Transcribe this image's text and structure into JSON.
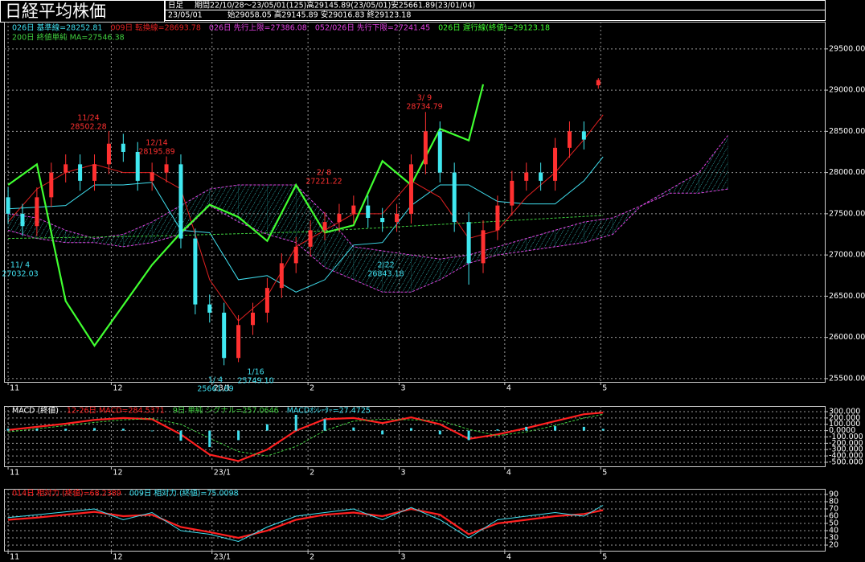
{
  "header": {
    "title": "日経平均株価",
    "timeframe": "日足",
    "period": "期間22/10/28～23/05/01(125)高29145.89(23/05/01)安25661.89(23/01/04)",
    "date": "23/05/01",
    "ohlc": "始29058.05 高29145.89 安29016.83 終29123.18"
  },
  "chart_data": [
    {
      "type": "candlestick",
      "up_color": "#ff3030",
      "down_color": "#40e8f0",
      "grid": true,
      "xlim": [
        -0.85,
        170.2
      ],
      "ylim": [
        25460,
        29830
      ],
      "xticks": [
        {
          "value": 0,
          "label": "11"
        },
        {
          "value": 21.5,
          "label": "12"
        },
        {
          "value": 42.5,
          "label": "23/1"
        },
        {
          "value": 62.5,
          "label": "2"
        },
        {
          "value": 81.5,
          "label": "3"
        },
        {
          "value": 103.5,
          "label": "4"
        },
        {
          "value": 123.5,
          "label": "5"
        }
      ],
      "yticks": [
        {
          "value": 29500,
          "label": "29500.00"
        },
        {
          "value": 29000,
          "label": "29000.00"
        },
        {
          "value": 28500,
          "label": "28500.00"
        },
        {
          "value": 28000,
          "label": "28000.00"
        },
        {
          "value": 27500,
          "label": "27500.00"
        },
        {
          "value": 27000,
          "label": "27000.00"
        },
        {
          "value": 26500,
          "label": "26500.00"
        },
        {
          "value": 26000,
          "label": "26000.00"
        },
        {
          "value": 25500,
          "label": "25500.00"
        }
      ],
      "x": [
        0,
        3,
        6,
        9,
        12,
        15,
        18,
        21,
        24,
        27,
        30,
        33,
        36,
        39,
        42,
        45,
        48,
        51,
        54,
        57,
        60,
        63,
        66,
        69,
        72,
        75,
        78,
        81,
        84,
        87,
        90,
        93,
        96,
        99,
        102,
        105,
        108,
        111,
        114,
        117,
        120,
        123
      ],
      "open": [
        27700,
        27500,
        27350,
        27700,
        28000,
        28100,
        27900,
        28100,
        28350,
        28250,
        27900,
        28000,
        28100,
        27200,
        26400,
        26300,
        25750,
        26150,
        26300,
        26600,
        26900,
        27100,
        27300,
        27400,
        27500,
        27600,
        27450,
        27400,
        27500,
        28100,
        28500,
        28000,
        27400,
        26900,
        27300,
        27600,
        27900,
        28000,
        27900,
        28300,
        28500,
        29058.05
      ],
      "high": [
        27820,
        27620,
        27820,
        28120,
        28220,
        28220,
        28220,
        28502.28,
        28470,
        28370,
        28120,
        28195.89,
        28220,
        27320,
        26520,
        26420,
        26270,
        26420,
        26720,
        27020,
        27220,
        27420,
        27520,
        27620,
        27720,
        27720,
        27570,
        27620,
        28220,
        28734.79,
        28620,
        28120,
        27520,
        27420,
        27720,
        28020,
        28120,
        28120,
        28420,
        28620,
        28620,
        29145.89
      ],
      "low": [
        27380,
        27230,
        27230,
        27580,
        27880,
        27780,
        27780,
        27980,
        28130,
        27780,
        27780,
        27880,
        27080,
        26280,
        26180,
        25661.89,
        25700,
        26030,
        26180,
        26480,
        26780,
        26980,
        27180,
        27280,
        27380,
        27330,
        27280,
        27280,
        27380,
        27980,
        27880,
        27280,
        26640,
        26780,
        27180,
        27480,
        27780,
        27780,
        27780,
        28180,
        28280,
        29016.83
      ],
      "close": [
        27500,
        27350,
        27700,
        28000,
        28100,
        27900,
        28100,
        28350,
        28250,
        27900,
        28000,
        28100,
        27200,
        26400,
        26300,
        25750,
        26150,
        26300,
        26600,
        26900,
        27100,
        27300,
        27400,
        27500,
        27600,
        27450,
        27400,
        27500,
        28100,
        28500,
        28000,
        27400,
        26900,
        27300,
        27600,
        27900,
        28000,
        27900,
        28300,
        28500,
        28400,
        29123.18
      ],
      "cloud": {
        "color": "#38c8c8",
        "upper": {
          "name": "026日 先行上限=27386.08",
          "color": "#e040e0",
          "x": [
            0,
            6,
            12,
            18,
            24,
            30,
            36,
            42,
            48,
            54,
            60,
            66,
            72,
            78,
            84,
            90,
            96,
            102,
            108,
            114,
            120,
            126,
            132,
            138,
            144,
            150
          ],
          "values": [
            27500,
            27450,
            27300,
            27200,
            27250,
            27400,
            27600,
            27800,
            27850,
            27850,
            27850,
            27500,
            27100,
            27050,
            27000,
            26950,
            27000,
            27100,
            27200,
            27300,
            27400,
            27450,
            27600,
            27800,
            28000,
            28450
          ]
        },
        "lower": {
          "name": "052/026日 先行下限=27241.45",
          "color": "#e040e0",
          "x": [
            0,
            6,
            12,
            18,
            24,
            30,
            36,
            42,
            48,
            54,
            60,
            66,
            72,
            78,
            84,
            90,
            96,
            102,
            108,
            114,
            120,
            126,
            132,
            138,
            144,
            150
          ],
          "values": [
            27300,
            27200,
            27150,
            27150,
            27100,
            27150,
            27250,
            27600,
            27400,
            27250,
            27150,
            26850,
            26700,
            26550,
            26550,
            26700,
            26900,
            27000,
            27050,
            27100,
            27150,
            27250,
            27600,
            27750,
            27750,
            27800
          ]
        }
      },
      "series": [
        {
          "name": "026日 基準線=28252.81",
          "color": "#40e0f0",
          "style": "line",
          "x": [
            0,
            6,
            12,
            18,
            24,
            30,
            36,
            42,
            48,
            54,
            60,
            66,
            72,
            78,
            84,
            90,
            96,
            102,
            108,
            114,
            120,
            124
          ],
          "values": [
            27560,
            27580,
            27600,
            27850,
            27850,
            27880,
            27300,
            27270,
            26700,
            26750,
            26550,
            26700,
            27120,
            27150,
            27600,
            27850,
            27850,
            27650,
            27620,
            27620,
            27900,
            28190
          ]
        },
        {
          "name": "009日 転換線=28693.78",
          "color": "#e02020",
          "style": "line",
          "x": [
            0,
            6,
            12,
            18,
            24,
            30,
            36,
            42,
            48,
            54,
            60,
            66,
            72,
            78,
            84,
            90,
            96,
            102,
            108,
            114,
            120,
            124
          ],
          "values": [
            27400,
            27800,
            28000,
            28100,
            28000,
            28000,
            27800,
            26700,
            26200,
            26500,
            27100,
            27300,
            27500,
            27500,
            27900,
            27700,
            27200,
            27300,
            27700,
            28000,
            28400,
            28700
          ]
        },
        {
          "name": "026日 遅行線(終値)=29123.18",
          "color": "#40ff30",
          "style": "thick",
          "x": [
            0,
            6,
            12,
            18,
            24,
            30,
            36,
            42,
            48,
            54,
            60,
            66,
            72,
            78,
            84,
            90,
            96,
            99
          ],
          "values": [
            27850,
            28100,
            26440,
            25900,
            26390,
            26880,
            27270,
            27610,
            27460,
            27170,
            27850,
            27270,
            27360,
            28140,
            27850,
            28530,
            28390,
            29070
          ]
        },
        {
          "name": "200日 終値単純 MA=27546.38",
          "color": "#40d040",
          "style": "dash",
          "x": [
            0,
            31,
            62,
            93,
            124
          ],
          "values": [
            27200,
            27230,
            27280,
            27380,
            27480
          ]
        }
      ],
      "annotations": [
        {
          "date": "11/ 4",
          "price": "27032.03"
        },
        {
          "date": "11/24",
          "price": "28502.28"
        },
        {
          "date": "12/14",
          "price": "28195.89"
        },
        {
          "date": "1/ 4",
          "price": "25661.89"
        },
        {
          "date": "1/16",
          "price": "25749.10"
        },
        {
          "date": "2/ 8",
          "price": "27221.22"
        },
        {
          "date": "2/22",
          "price": "26843.18"
        },
        {
          "date": "3/ 9",
          "price": "28734.79"
        }
      ]
    },
    {
      "type": "line",
      "title": "MACD (終値)",
      "grid": true,
      "xlim": [
        -0.85,
        170.2
      ],
      "ylim": [
        -564,
        389
      ],
      "xticks": [
        {
          "value": 0,
          "label": "11"
        },
        {
          "value": 21.5,
          "label": "12"
        },
        {
          "value": 42.5,
          "label": "23/1"
        },
        {
          "value": 62.5,
          "label": "2"
        },
        {
          "value": 81.5,
          "label": "3"
        },
        {
          "value": 103.5,
          "label": "4"
        },
        {
          "value": 123.5,
          "label": "5"
        }
      ],
      "yticks": [
        {
          "value": 300,
          "label": "300.000"
        },
        {
          "value": 200,
          "label": "200.000"
        },
        {
          "value": 100,
          "label": "100.000"
        },
        {
          "value": 0,
          "label": "0.0000"
        },
        {
          "value": -100,
          "label": "-100.000"
        },
        {
          "value": -200,
          "label": "-200.000"
        },
        {
          "value": -300,
          "label": "-300.000"
        },
        {
          "value": -400,
          "label": "-400.000"
        },
        {
          "value": -500,
          "label": "-500.000"
        }
      ],
      "series": [
        {
          "name": "12-26日 MACD=284.5371",
          "color": "#ff2020",
          "style": "thick",
          "x": [
            0,
            6,
            12,
            18,
            24,
            30,
            36,
            42,
            48,
            54,
            60,
            66,
            72,
            78,
            84,
            90,
            96,
            102,
            108,
            114,
            120,
            124
          ],
          "values": [
            10,
            60,
            110,
            170,
            200,
            180,
            -60,
            -380,
            -480,
            -300,
            0,
            180,
            200,
            120,
            210,
            100,
            -130,
            -60,
            40,
            150,
            260,
            284.5371
          ]
        },
        {
          "name": "9日 単純 シグナル=257.0646",
          "color": "#40d040",
          "style": "dash",
          "x": [
            0,
            6,
            12,
            18,
            24,
            30,
            36,
            42,
            48,
            54,
            60,
            66,
            72,
            78,
            84,
            90,
            96,
            102,
            108,
            114,
            120,
            124
          ],
          "values": [
            -20,
            30,
            80,
            130,
            170,
            190,
            100,
            -120,
            -330,
            -400,
            -250,
            0,
            150,
            180,
            170,
            160,
            20,
            -80,
            -20,
            80,
            200,
            257.0646
          ]
        },
        {
          "name": "MACDｵｼﾚｰﾀｰ=27.4725",
          "color": "#40e0f0",
          "style": "bar",
          "x": [
            0,
            6,
            12,
            18,
            24,
            30,
            36,
            42,
            48,
            54,
            60,
            66,
            72,
            78,
            84,
            90,
            96,
            102,
            108,
            114,
            120,
            124
          ],
          "values": [
            30,
            30,
            30,
            40,
            30,
            -10,
            -160,
            -260,
            -150,
            100,
            250,
            180,
            50,
            -60,
            40,
            -60,
            -150,
            20,
            60,
            70,
            60,
            27.4725
          ]
        }
      ]
    },
    {
      "type": "line",
      "grid": true,
      "xlim": [
        -0.85,
        170.2
      ],
      "ylim": [
        12.2,
        97.8
      ],
      "xticks": [
        {
          "value": 0,
          "label": "11"
        },
        {
          "value": 21.5,
          "label": "12"
        },
        {
          "value": 42.5,
          "label": "23/1"
        },
        {
          "value": 62.5,
          "label": "2"
        },
        {
          "value": 81.5,
          "label": "3"
        },
        {
          "value": 103.5,
          "label": "4"
        },
        {
          "value": 123.5,
          "label": "5"
        }
      ],
      "yticks": [
        90,
        80,
        70,
        60,
        50,
        40,
        30,
        20
      ],
      "series": [
        {
          "name": "014日 相対力 (終値)=68.2389",
          "color": "#ff2020",
          "style": "thick",
          "x": [
            0,
            6,
            12,
            18,
            24,
            30,
            36,
            42,
            48,
            54,
            60,
            66,
            72,
            78,
            84,
            90,
            96,
            102,
            108,
            114,
            120,
            124
          ],
          "values": [
            55,
            58,
            62,
            66,
            60,
            62,
            45,
            38,
            30,
            40,
            55,
            62,
            65,
            60,
            70,
            62,
            35,
            50,
            55,
            60,
            63,
            68.2389
          ]
        },
        {
          "name": "009日 相対力 (終値)=75.0098",
          "color": "#40e0f0",
          "style": "line",
          "x": [
            0,
            6,
            12,
            18,
            24,
            30,
            36,
            42,
            48,
            54,
            60,
            66,
            72,
            78,
            84,
            90,
            96,
            102,
            108,
            114,
            120,
            124
          ],
          "values": [
            58,
            62,
            66,
            70,
            55,
            65,
            40,
            35,
            25,
            45,
            60,
            65,
            70,
            55,
            72,
            55,
            30,
            55,
            60,
            65,
            60,
            75.0098
          ]
        }
      ]
    }
  ]
}
